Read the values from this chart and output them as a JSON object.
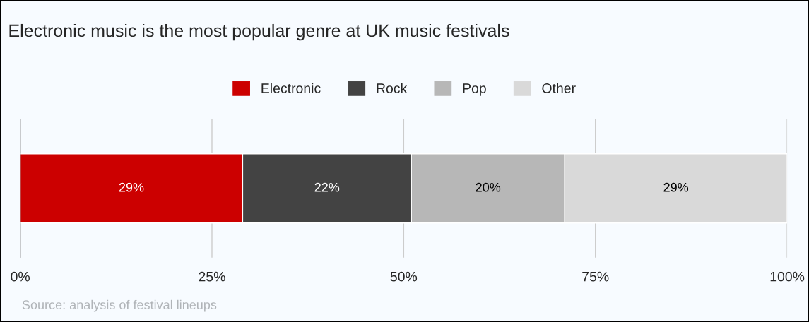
{
  "chart_data": {
    "type": "bar",
    "title": "Electronic music is the most popular genre at UK music festivals",
    "orientation": "horizontal",
    "stacked": true,
    "categories": [
      null
    ],
    "series": [
      {
        "name": "Electronic",
        "color": "#cc0000",
        "values": [
          29
        ],
        "value_labels": [
          "29%"
        ]
      },
      {
        "name": "Rock",
        "color": "#434343",
        "values": [
          22
        ],
        "value_labels": [
          "22%"
        ]
      },
      {
        "name": "Pop",
        "color": "#b7b7b7",
        "values": [
          20
        ],
        "value_labels": [
          "20%"
        ]
      },
      {
        "name": "Other",
        "color": "#d9d9d9",
        "values": [
          29
        ],
        "value_labels": [
          "29%"
        ]
      }
    ],
    "xlim": [
      0,
      100
    ],
    "xticks": [
      {
        "value": 0,
        "label": "0%"
      },
      {
        "value": 25,
        "label": "25%"
      },
      {
        "value": 50,
        "label": "50%"
      },
      {
        "value": 75,
        "label": "75%"
      },
      {
        "value": 100,
        "label": "100%"
      }
    ],
    "tick_labels": "x",
    "grid": "x",
    "legend": "top",
    "annotations": [
      "Source: analysis of festival lineups"
    ]
  }
}
